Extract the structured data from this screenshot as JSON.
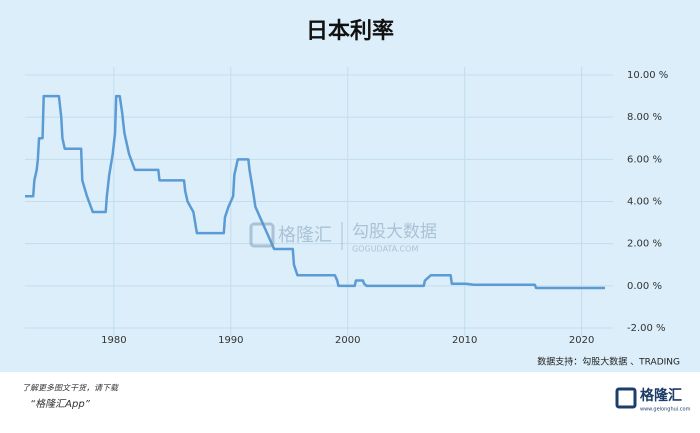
{
  "chart_data": {
    "type": "line",
    "title": "日本利率",
    "color": "#5b9bd5",
    "grid": true,
    "x": [
      1972.4,
      1973.1,
      1973.2,
      1973.4,
      1973.5,
      1973.6,
      1973.9,
      1974.0,
      1975.3,
      1975.4,
      1975.5,
      1975.6,
      1975.8,
      1977.2,
      1977.3,
      1977.7,
      1978.2,
      1979.3,
      1979.4,
      1979.6,
      1979.9,
      1980.1,
      1980.2,
      1980.5,
      1980.7,
      1980.9,
      1981.3,
      1981.8,
      1983.8,
      1983.9,
      1986.0,
      1986.1,
      1986.3,
      1986.8,
      1987.1,
      1989.4,
      1989.5,
      1989.8,
      1990.2,
      1990.3,
      1990.6,
      1991.5,
      1991.6,
      1991.9,
      1992.1,
      1992.5,
      1993.1,
      1993.7,
      1995.3,
      1995.4,
      1995.7,
      1998.9,
      1999.1,
      1999.2,
      2000.6,
      2000.7,
      2001.3,
      2001.4,
      2001.6,
      2006.5,
      2006.6,
      2007.1,
      2008.8,
      2008.9,
      2010.1,
      2010.8,
      2016.0,
      2016.1,
      2022.0
    ],
    "values": [
      4.25,
      4.25,
      5,
      5.5,
      6,
      7,
      7,
      9,
      9,
      8.5,
      8,
      7,
      6.5,
      6.5,
      5,
      4.25,
      3.5,
      3.5,
      4.25,
      5.25,
      6.25,
      7.25,
      9,
      9,
      8.25,
      7.25,
      6.25,
      5.5,
      5.5,
      5,
      5,
      4.5,
      4,
      3.5,
      2.5,
      2.5,
      3.25,
      3.75,
      4.25,
      5.25,
      6,
      6,
      5.5,
      4.5,
      3.75,
      3.25,
      2.5,
      1.75,
      1.75,
      1,
      0.5,
      0.5,
      0.25,
      0,
      0,
      0.25,
      0.25,
      0.1,
      0,
      0,
      0.25,
      0.5,
      0.5,
      0.1,
      0.1,
      0.05,
      0.05,
      -0.1,
      -0.1
    ],
    "xlim": [
      1972.4,
      2022.0
    ],
    "xticks": [
      1980,
      1990,
      2000,
      2010,
      2020
    ],
    "ylim": [
      -2,
      10
    ],
    "yticks": [
      {
        "value": 10,
        "label": "10.00 %"
      },
      {
        "value": 8,
        "label": "8.00 %"
      },
      {
        "value": 6,
        "label": "6.00 %"
      },
      {
        "value": 4,
        "label": "4.00 %"
      },
      {
        "value": 2,
        "label": "2.00 %"
      },
      {
        "value": 0,
        "label": "0.00 %"
      },
      {
        "value": -2,
        "label": "-2.00 %"
      }
    ],
    "source": "数据支持：勾股大数据 、TRADING"
  },
  "watermark": {
    "brand": "格隆汇",
    "partner": "勾股大数据",
    "url": "GOGUDATA.COM"
  },
  "footer": {
    "line1": "了解更多图文干货，请下载",
    "line2": "“格隆汇App”",
    "logo": "格隆汇",
    "logo_url": "www.gelonghui.com"
  }
}
